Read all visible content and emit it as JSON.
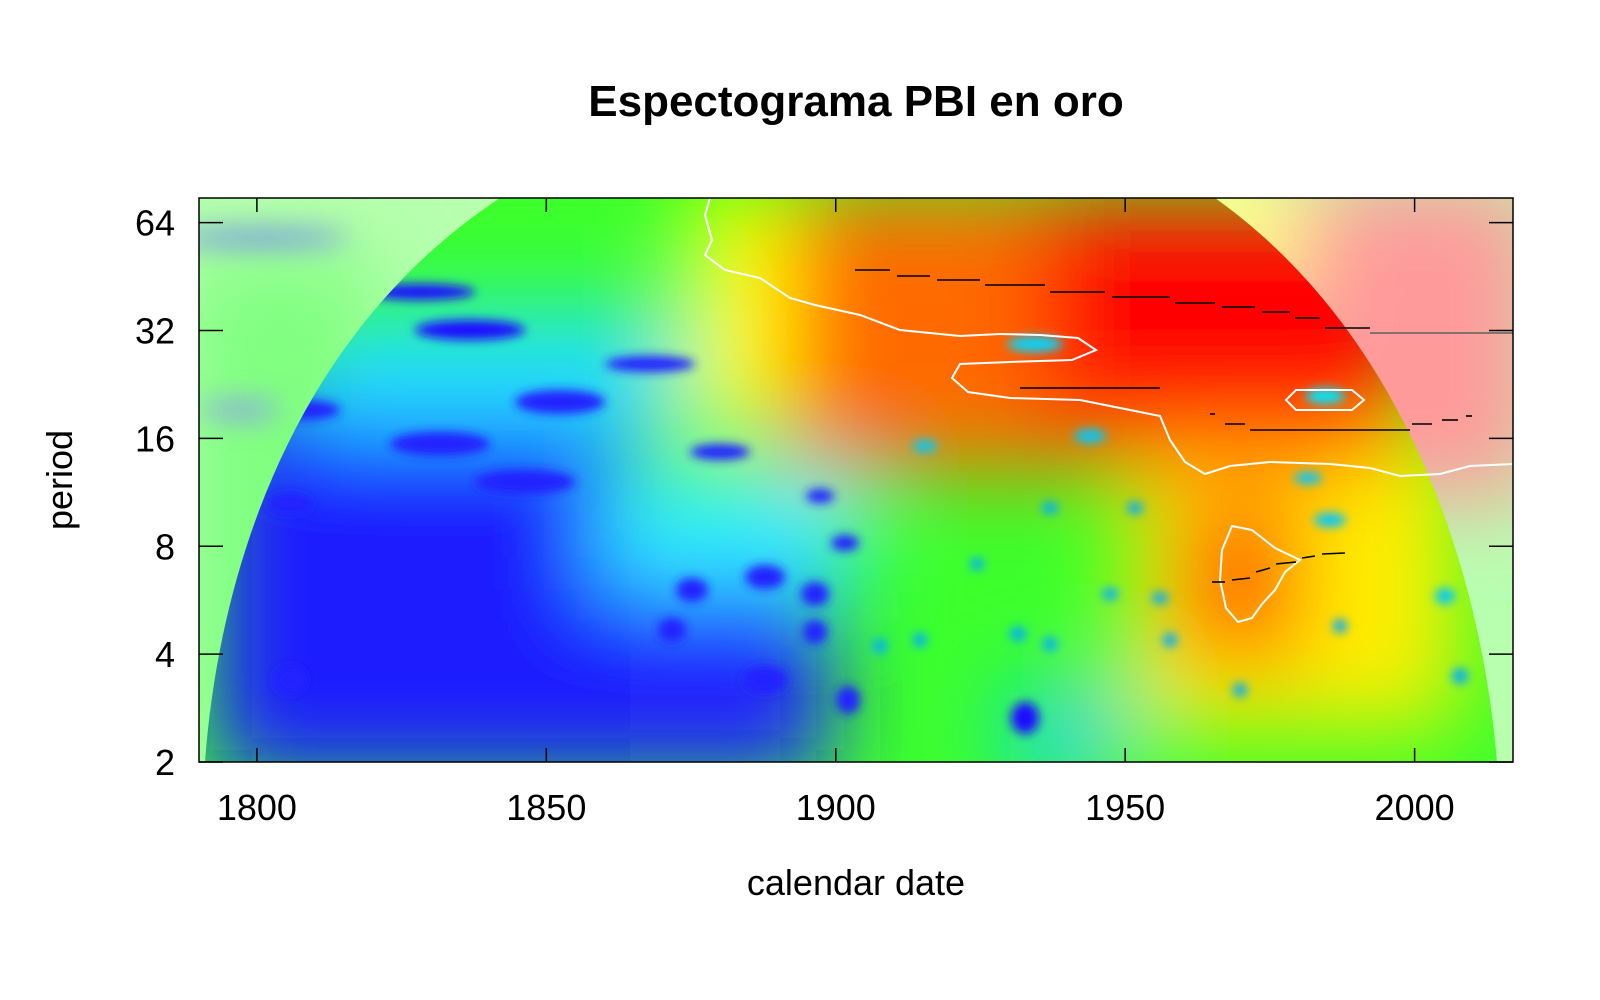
{
  "chart_data": {
    "type": "heatmap",
    "title": "Espectograma PBI en oro",
    "xlabel": "calendar date",
    "ylabel": "period",
    "x_ticks": [
      "1800",
      "1850",
      "1900",
      "1950",
      "2000"
    ],
    "y_ticks": [
      "2",
      "4",
      "8",
      "16",
      "32",
      "64"
    ],
    "xlim": [
      1790,
      2017
    ],
    "ylim": [
      2,
      75
    ],
    "y_scale": "log2",
    "colormap": [
      "#1010ff",
      "#00e5ff",
      "#22ff22",
      "#ffff00",
      "#ff8800",
      "#ff0000"
    ],
    "cone_of_influence": true,
    "significance_contour_color": "#ffffff",
    "ridge_color": "#000000"
  }
}
